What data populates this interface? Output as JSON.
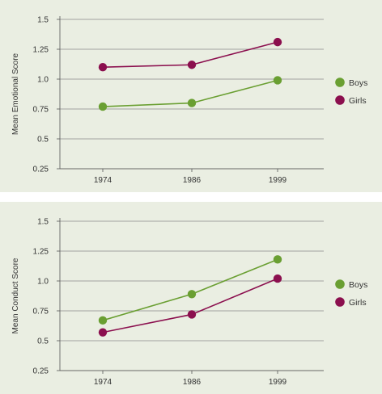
{
  "chart_data": [
    {
      "type": "line",
      "title": "",
      "xlabel": "",
      "ylabel": "Mean Emotional Score",
      "categories": [
        "1974",
        "1986",
        "1999"
      ],
      "yticks": [
        "0.25",
        "0.5",
        "0.75",
        "1.0",
        "1.25",
        "1.5"
      ],
      "ylim": [
        0.25,
        1.5
      ],
      "grid": true,
      "legend": "right",
      "series": [
        {
          "name": "Boys",
          "color": "#6a9f32",
          "values": [
            0.77,
            0.8,
            0.99
          ]
        },
        {
          "name": "Girls",
          "color": "#8b0f4e",
          "values": [
            1.1,
            1.12,
            1.31
          ]
        }
      ]
    },
    {
      "type": "line",
      "title": "",
      "xlabel": "",
      "ylabel": "Mean Conduct Score",
      "categories": [
        "1974",
        "1986",
        "1999"
      ],
      "yticks": [
        "0.25",
        "0.5",
        "0.75",
        "1.0",
        "1.25",
        "1.5"
      ],
      "ylim": [
        0.25,
        1.5
      ],
      "grid": true,
      "legend": "right",
      "series": [
        {
          "name": "Boys",
          "color": "#6a9f32",
          "values": [
            0.67,
            0.89,
            1.18
          ]
        },
        {
          "name": "Girls",
          "color": "#8b0f4e",
          "values": [
            0.57,
            0.72,
            1.02
          ]
        }
      ]
    }
  ]
}
